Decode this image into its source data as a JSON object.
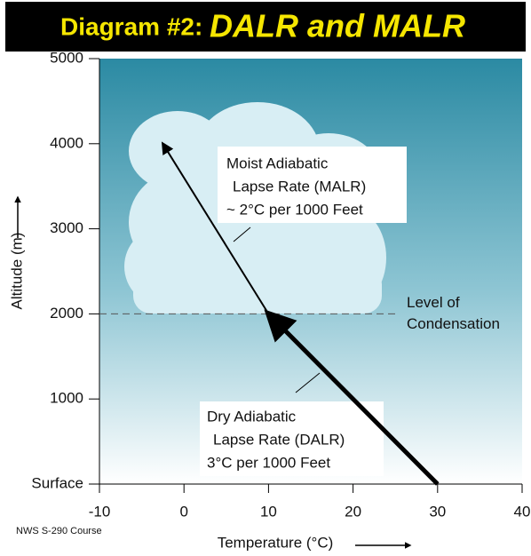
{
  "chart_data": {
    "type": "line",
    "title": {
      "label": "Diagram #2:",
      "emphasis": "DALR and MALR"
    },
    "x_label": "Temperature (°C)",
    "y_label": "Altitude (m)",
    "source": "NWS S-290 Course",
    "xlim": [
      -10,
      40
    ],
    "xticks": [
      -10,
      0,
      10,
      20,
      30,
      40
    ],
    "ylim": [
      0,
      5000
    ],
    "yticks": [
      {
        "value": 0,
        "label": "Surface"
      },
      1000,
      2000,
      3000,
      4000,
      5000
    ],
    "series": [
      {
        "x": [
          30,
          10
        ],
        "values": [
          0,
          2000
        ],
        "color": "#000000",
        "line_width": 5
      },
      {
        "x": [
          10,
          -2.5
        ],
        "values": [
          2000,
          4000
        ],
        "color": "#000000",
        "line_width": 2
      }
    ],
    "reference_line": {
      "value": 2000,
      "label": [
        "Level of",
        "Condensation"
      ]
    },
    "annotations": [
      {
        "lines": [
          "Moist Adiabatic",
          "Lapse Rate (MALR)",
          "~ 2°C per 1000 Feet"
        ]
      },
      {
        "lines": [
          "Dry Adiabatic",
          "Lapse Rate (DALR)",
          "3°C per 1000 Feet"
        ]
      }
    ]
  }
}
